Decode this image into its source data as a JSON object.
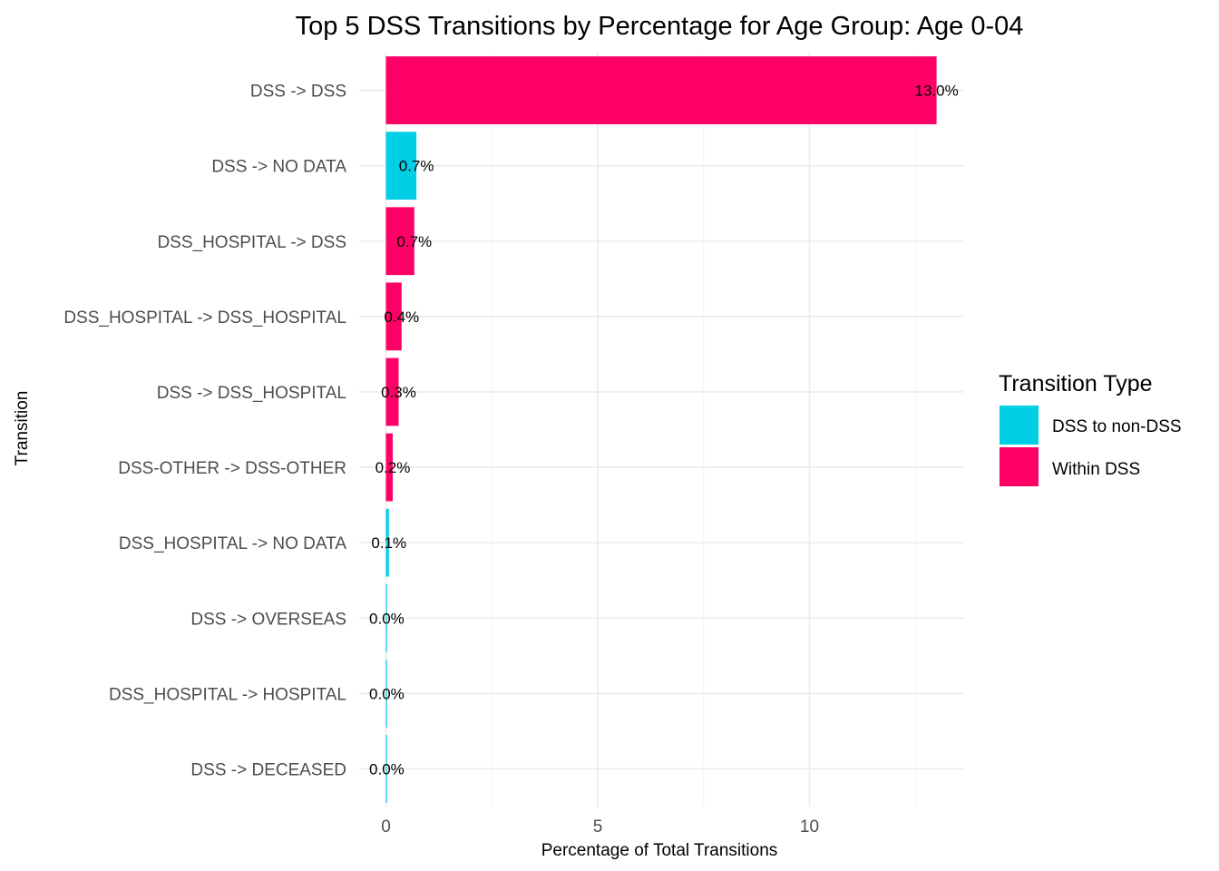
{
  "chart_data": {
    "type": "bar",
    "orientation": "horizontal",
    "title": "Top 5 DSS Transitions by Percentage for Age Group: Age 0-04",
    "xlabel": "Percentage of Total Transitions",
    "ylabel": "Transition",
    "xlim": [
      0,
      13.6
    ],
    "xticks": [
      0,
      5,
      10
    ],
    "grid": true,
    "legend": {
      "title": "Transition Type",
      "placement": "right",
      "entries": [
        {
          "name": "DSS to non-DSS",
          "color": "#00CFE6"
        },
        {
          "name": "Within DSS",
          "color": "#FF0066"
        }
      ]
    },
    "bars": [
      {
        "category": "DSS -> DSS",
        "value": 13.0,
        "label": "13.0%",
        "type": "Within DSS"
      },
      {
        "category": "DSS -> NO DATA",
        "value": 0.72,
        "label": "0.7%",
        "type": "DSS to non-DSS"
      },
      {
        "category": "DSS_HOSPITAL -> DSS",
        "value": 0.67,
        "label": "0.7%",
        "type": "Within DSS"
      },
      {
        "category": "DSS_HOSPITAL -> DSS_HOSPITAL",
        "value": 0.37,
        "label": "0.4%",
        "type": "Within DSS"
      },
      {
        "category": "DSS -> DSS_HOSPITAL",
        "value": 0.3,
        "label": "0.3%",
        "type": "Within DSS"
      },
      {
        "category": "DSS-OTHER -> DSS-OTHER",
        "value": 0.16,
        "label": "0.2%",
        "type": "Within DSS"
      },
      {
        "category": "DSS_HOSPITAL -> NO DATA",
        "value": 0.07,
        "label": "0.1%",
        "type": "DSS to non-DSS"
      },
      {
        "category": "DSS -> OVERSEAS",
        "value": 0.02,
        "label": "0.0%",
        "type": "DSS to non-DSS"
      },
      {
        "category": "DSS_HOSPITAL -> HOSPITAL",
        "value": 0.02,
        "label": "0.0%",
        "type": "DSS to non-DSS"
      },
      {
        "category": "DSS -> DECEASED",
        "value": 0.02,
        "label": "0.0%",
        "type": "DSS to non-DSS"
      }
    ]
  }
}
